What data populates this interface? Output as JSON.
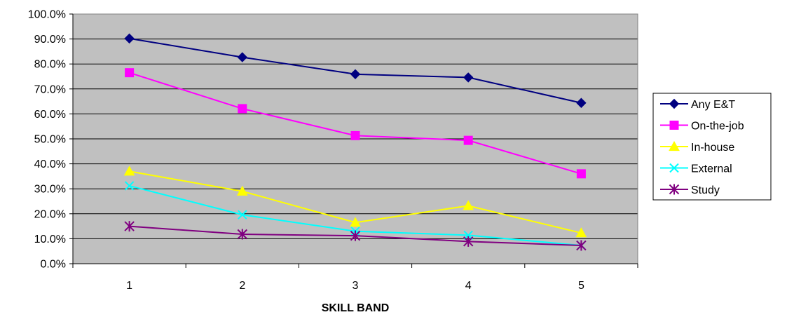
{
  "chart_data": {
    "type": "line",
    "title": "",
    "xlabel": "SKILL BAND",
    "ylabel": "",
    "x": [
      1,
      2,
      3,
      4,
      5
    ],
    "x_tick_labels": [
      "1",
      "2",
      "3",
      "4",
      "5"
    ],
    "ylim": [
      0,
      100
    ],
    "y_ticks": [
      0,
      10,
      20,
      30,
      40,
      50,
      60,
      70,
      80,
      90,
      100
    ],
    "y_tick_labels": [
      "0.0%",
      "10.0%",
      "20.0%",
      "30.0%",
      "40.0%",
      "50.0%",
      "60.0%",
      "70.0%",
      "80.0%",
      "90.0%",
      "100.0%"
    ],
    "grid": "horizontal",
    "plot_background": "#c0c0c0",
    "legend_position": "right",
    "series": [
      {
        "name": "Any E&T",
        "values": [
          90.2,
          82.7,
          75.9,
          74.6,
          64.4
        ],
        "color": "#000080",
        "marker": "diamond"
      },
      {
        "name": "On-the-job",
        "values": [
          76.5,
          62.1,
          51.3,
          49.4,
          36.0
        ],
        "color": "#ff00ff",
        "marker": "square"
      },
      {
        "name": "In-house",
        "values": [
          37.0,
          29.0,
          16.5,
          23.2,
          12.3
        ],
        "color": "#ffff00",
        "marker": "triangle"
      },
      {
        "name": "External",
        "values": [
          31.2,
          19.6,
          13.0,
          11.4,
          7.3
        ],
        "color": "#00ffff",
        "marker": "x"
      },
      {
        "name": "Study",
        "values": [
          15.0,
          11.8,
          11.2,
          8.9,
          7.3
        ],
        "color": "#800080",
        "marker": "star"
      }
    ]
  }
}
